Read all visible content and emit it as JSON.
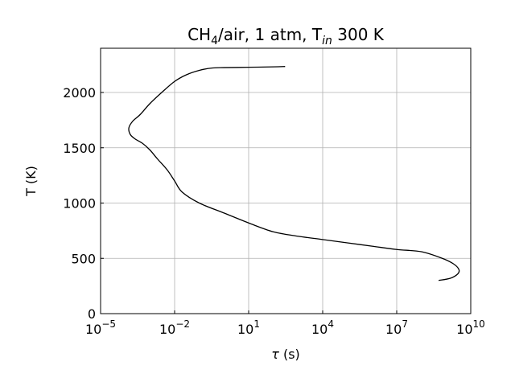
{
  "chart_data": {
    "type": "line",
    "title_parts": {
      "main": "CH",
      "sub1": "4",
      "mid": "/air, 1 atm, T",
      "sub2": "in",
      "tail": " 300 K"
    },
    "xlabel_greek": "τ",
    "xlabel_rest": " (s)",
    "ylabel": "T (K)",
    "x_scale": "log",
    "xlim": [
      1e-05,
      10000000000.0
    ],
    "ylim": [
      0,
      2400
    ],
    "grid": true,
    "x_ticks": [
      {
        "value": 1e-05,
        "base": "10",
        "exp": "−5"
      },
      {
        "value": 0.01,
        "base": "10",
        "exp": "−2"
      },
      {
        "value": 10.0,
        "base": "10",
        "exp": "1"
      },
      {
        "value": 10000.0,
        "base": "10",
        "exp": "4"
      },
      {
        "value": 10000000.0,
        "base": "10",
        "exp": "7"
      },
      {
        "value": 10000000000.0,
        "base": "10",
        "exp": "10"
      }
    ],
    "y_ticks": [
      {
        "value": 0,
        "label": "0"
      },
      {
        "value": 500,
        "label": "500"
      },
      {
        "value": 1000,
        "label": "1000"
      },
      {
        "value": 1500,
        "label": "1500"
      },
      {
        "value": 2000,
        "label": "2000"
      }
    ],
    "series": [
      {
        "color": "#000000",
        "points": [
          [
            500000000.0,
            300
          ],
          [
            1500000000.0,
            320
          ],
          [
            3000000000.0,
            360
          ],
          [
            3300000000.0,
            400
          ],
          [
            2000000000.0,
            450
          ],
          [
            700000000.0,
            500
          ],
          [
            100000000.0,
            560
          ],
          [
            10000000.0,
            580
          ],
          [
            1000000.0,
            610
          ],
          [
            100000.0,
            640
          ],
          [
            10000.0,
            670
          ],
          [
            1000.0,
            700
          ],
          [
            100.0,
            740
          ],
          [
            10,
            820
          ],
          [
            1,
            910
          ],
          [
            0.1,
            1000
          ],
          [
            0.02,
            1100
          ],
          [
            0.01,
            1200
          ],
          [
            0.005,
            1300
          ],
          [
            0.002,
            1400
          ],
          [
            0.001,
            1480
          ],
          [
            0.0005,
            1540
          ],
          [
            0.00025,
            1580
          ],
          [
            0.00016,
            1620
          ],
          [
            0.00014,
            1680
          ],
          [
            0.0002,
            1740
          ],
          [
            0.0004,
            1800
          ],
          [
            0.001,
            1900
          ],
          [
            0.003,
            2000
          ],
          [
            0.01,
            2100
          ],
          [
            0.03,
            2160
          ],
          [
            0.1,
            2200
          ],
          [
            0.3,
            2220
          ],
          [
            1,
            2225
          ],
          [
            10,
            2228
          ],
          [
            100,
            2232
          ],
          [
            300,
            2235
          ]
        ]
      }
    ]
  }
}
